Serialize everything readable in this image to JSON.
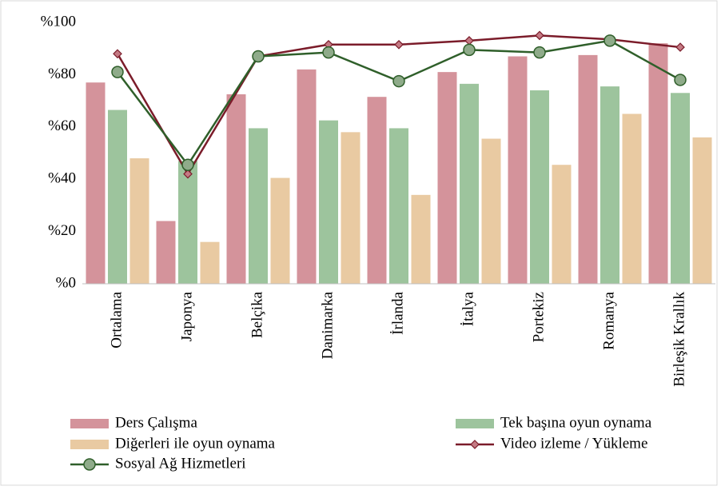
{
  "chart_data": {
    "type": "bar",
    "categories": [
      "Ortalama",
      "Japonya",
      "Belçika",
      "Danimarka",
      "İrlanda",
      "İtalya",
      "Portekiz",
      "Romanya",
      "Birleşik Krallık"
    ],
    "series": [
      {
        "name": "Ders Çalışma",
        "type": "bar",
        "color": "#d4939b",
        "values": [
          77,
          24,
          72.5,
          82,
          71.5,
          81,
          87,
          87.5,
          92
        ]
      },
      {
        "name": "Tek başına oyun oynama",
        "type": "bar",
        "color": "#9dc49d",
        "values": [
          66.5,
          47,
          59.5,
          62.5,
          59.5,
          76.5,
          74,
          75.5,
          73
        ]
      },
      {
        "name": "Diğerleri ile oyun oynama",
        "type": "bar",
        "color": "#e9caa2",
        "values": [
          48,
          16,
          40.5,
          58,
          34,
          55.5,
          45.5,
          65,
          56
        ]
      },
      {
        "name": "Video izleme / Yükleme",
        "type": "line",
        "marker": "diamond",
        "color": "#7b1c2a",
        "marker_color": "#c47a84",
        "values": [
          88,
          42,
          87,
          91.5,
          91.5,
          93,
          95,
          93.5,
          90.5
        ]
      },
      {
        "name": "Sosyal Ağ Hizmetleri",
        "type": "line",
        "marker": "circle",
        "color": "#2f5f2a",
        "marker_color": "#8fab8a",
        "values": [
          81,
          45.5,
          87,
          88.5,
          77.5,
          89.5,
          88.5,
          93,
          78
        ]
      }
    ],
    "ylim": [
      0,
      100
    ],
    "yticks": [
      {
        "value": 0,
        "label": "%0"
      },
      {
        "value": 20,
        "label": "%20"
      },
      {
        "value": 40,
        "label": "%40"
      },
      {
        "value": 60,
        "label": "%60"
      },
      {
        "value": 80,
        "label": "%80"
      },
      {
        "value": 100,
        "label": "%100"
      }
    ],
    "grid": false,
    "legend": "bottom"
  }
}
